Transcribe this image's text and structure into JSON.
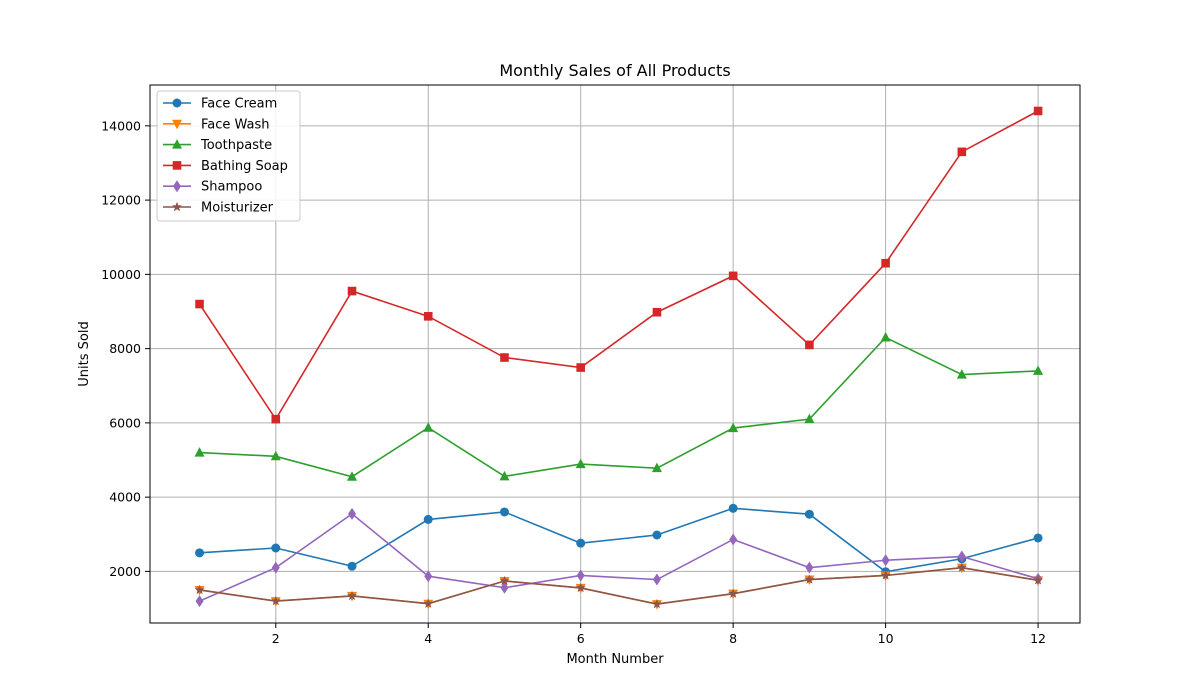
{
  "chart_data": {
    "type": "line",
    "title": "Monthly Sales of All Products",
    "xlabel": "Month Number",
    "ylabel": "Units Sold",
    "xlim": [
      0.35,
      12.55
    ],
    "ylim": [
      610,
      15100
    ],
    "x_ticks": [
      2,
      4,
      6,
      8,
      10,
      12
    ],
    "y_ticks": [
      2000,
      4000,
      6000,
      8000,
      10000,
      12000,
      14000
    ],
    "grid": true,
    "legend_position": "top-left",
    "x": [
      1,
      2,
      3,
      4,
      5,
      6,
      7,
      8,
      9,
      10,
      11,
      12
    ],
    "series": [
      {
        "name": "Face Cream",
        "color": "#1f77b4",
        "marker": "circle",
        "values": [
          2500,
          2630,
          2140,
          3400,
          3600,
          2760,
          2980,
          3700,
          3540,
          1990,
          2340,
          2900
        ]
      },
      {
        "name": "Face Wash",
        "color": "#ff7f0e",
        "marker": "triangle-down",
        "values": [
          1500,
          1200,
          1340,
          1130,
          1740,
          1555,
          1120,
          1400,
          1780,
          1890,
          2100,
          1760
        ]
      },
      {
        "name": "Toothpaste",
        "color": "#2ca02c",
        "marker": "triangle-up",
        "values": [
          5200,
          5100,
          4550,
          5870,
          4560,
          4890,
          4780,
          5860,
          6100,
          8300,
          7300,
          7400
        ]
      },
      {
        "name": "Bathing Soap",
        "color": "#d62728",
        "marker": "square",
        "values": [
          9200,
          6100,
          9550,
          8870,
          7760,
          7490,
          8980,
          9960,
          8100,
          10300,
          13300,
          14400
        ]
      },
      {
        "name": "Shampoo",
        "color": "#9467bd",
        "marker": "diamond",
        "values": [
          1200,
          2100,
          3550,
          1870,
          1560,
          1890,
          1780,
          2860,
          2100,
          2300,
          2400,
          1800
        ]
      },
      {
        "name": "Moisturizer",
        "color": "#8c564b",
        "marker": "star",
        "values": [
          1500,
          1200,
          1340,
          1130,
          1740,
          1555,
          1120,
          1400,
          1780,
          1890,
          2100,
          1760
        ]
      }
    ]
  }
}
